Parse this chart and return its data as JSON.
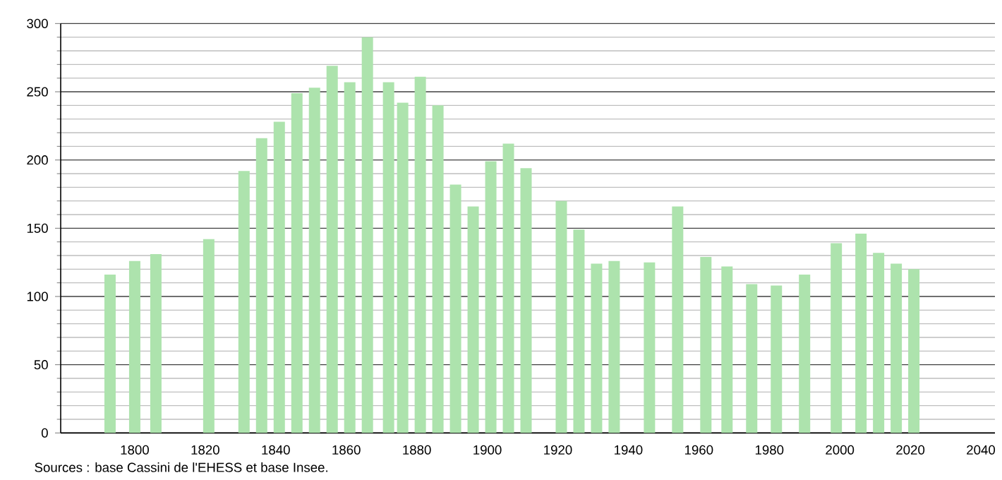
{
  "chart_data": {
    "type": "bar",
    "color": "#ade3ad",
    "x": [
      1793,
      1800,
      1806,
      1821,
      1831,
      1836,
      1841,
      1846,
      1851,
      1856,
      1861,
      1866,
      1872,
      1876,
      1881,
      1886,
      1891,
      1896,
      1901,
      1906,
      1911,
      1921,
      1926,
      1931,
      1936,
      1946,
      1954,
      1962,
      1968,
      1975,
      1982,
      1990,
      1999,
      2006,
      2011,
      2016,
      2021
    ],
    "values": [
      116,
      126,
      131,
      142,
      192,
      216,
      228,
      249,
      253,
      269,
      257,
      290,
      257,
      242,
      261,
      240,
      182,
      166,
      199,
      212,
      194,
      170,
      149,
      124,
      126,
      125,
      166,
      129,
      122,
      109,
      108,
      116,
      139,
      146,
      132,
      124,
      120
    ],
    "xlim": [
      1779,
      2044
    ],
    "xticks": [
      1800,
      1820,
      1840,
      1860,
      1880,
      1900,
      1920,
      1940,
      1960,
      1980,
      2000,
      2020,
      2040
    ],
    "ylim": [
      0,
      300
    ],
    "yticks": [
      0,
      50,
      100,
      150,
      200,
      250,
      300
    ],
    "grid": "y",
    "annotations": [
      "Sources : base Cassini de l'EHESS et base Insee."
    ]
  }
}
